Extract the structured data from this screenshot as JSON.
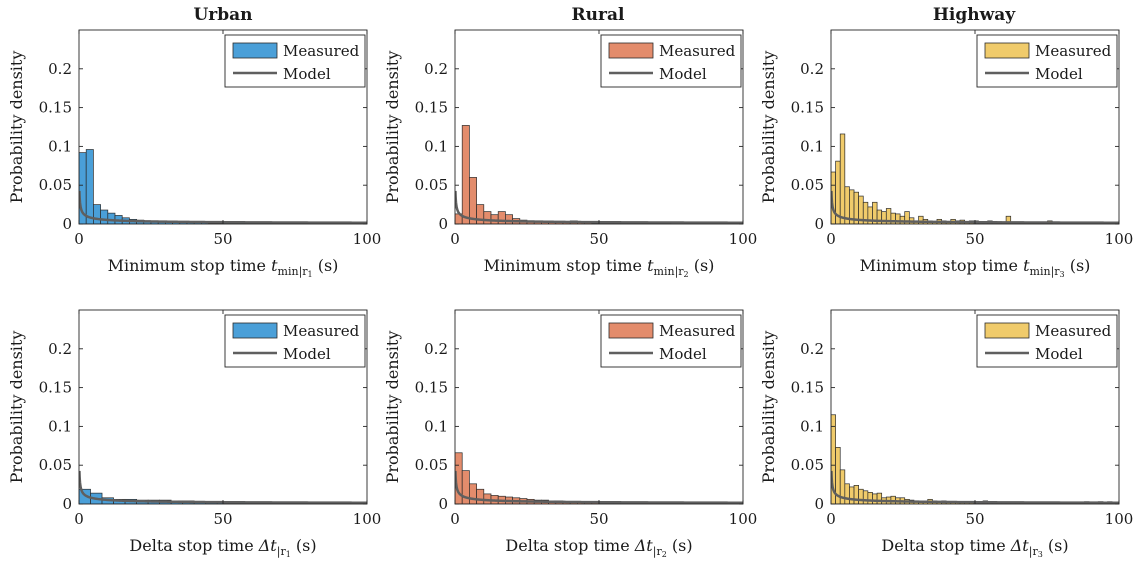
{
  "figure": {
    "columns": [
      "Urban",
      "Rural",
      "Highway"
    ],
    "colors": {
      "Urban": "#4a9fd8",
      "Rural": "#e38c6c",
      "Highway": "#f0cb6b",
      "model": "#5f5f5f",
      "edge": "#2b2b2b"
    }
  },
  "chart_data": [
    {
      "type": "bar",
      "column": "Urban",
      "row": "min",
      "xlabel_main": "Minimum stop time ",
      "xlabel_var": "t",
      "xlabel_sub": "min|r",
      "xlabel_subsub": "1",
      "xlabel_unit": " (s)",
      "ylabel": "Probability density",
      "xlim": [
        0,
        100
      ],
      "ylim": [
        0,
        0.25
      ],
      "xticks": [
        "0",
        "50",
        "100"
      ],
      "yticks": [
        "0",
        "0.05",
        "0.1",
        "0.15",
        "0.2"
      ],
      "bin_width": 2.5,
      "values": [
        0.092,
        0.096,
        0.025,
        0.018,
        0.014,
        0.011,
        0.008,
        0.006,
        0.005,
        0.004,
        0.004,
        0.003,
        0.003,
        0.002,
        0.002,
        0.002,
        0.002,
        0.002,
        0.001,
        0.001,
        0.001,
        0.001,
        0.001,
        0.001,
        0.001,
        0.001,
        0.001,
        0.001,
        0.001,
        0.001,
        0.001,
        0.001,
        0.0,
        0.0,
        0.0,
        0.0,
        0.0,
        0.0,
        0.0,
        0.0
      ],
      "model": {
        "a": 0.0165,
        "b": -0.5
      },
      "legend": {
        "measured": "Measured",
        "model": "Model"
      }
    },
    {
      "type": "bar",
      "column": "Rural",
      "row": "min",
      "xlabel_main": "Minimum stop time ",
      "xlabel_var": "t",
      "xlabel_sub": "min|r",
      "xlabel_subsub": "2",
      "xlabel_unit": " (s)",
      "ylabel": "Probability density",
      "xlim": [
        0,
        100
      ],
      "ylim": [
        0,
        0.25
      ],
      "xticks": [
        "0",
        "50",
        "100"
      ],
      "yticks": [
        "0",
        "0.05",
        "0.1",
        "0.15",
        "0.2"
      ],
      "bin_width": 2.5,
      "values": [
        0.013,
        0.127,
        0.06,
        0.025,
        0.016,
        0.012,
        0.016,
        0.012,
        0.007,
        0.005,
        0.004,
        0.003,
        0.003,
        0.003,
        0.002,
        0.002,
        0.004,
        0.003,
        0.002,
        0.001,
        0.001,
        0.001,
        0.001,
        0.001,
        0.001,
        0.001,
        0.001,
        0.001,
        0.001,
        0.001,
        0.0,
        0.0,
        0.0,
        0.0,
        0.0,
        0.0,
        0.0,
        0.0,
        0.0,
        0.0
      ],
      "model": {
        "a": 0.0165,
        "b": -0.5
      },
      "legend": {
        "measured": "Measured",
        "model": "Model"
      }
    },
    {
      "type": "bar",
      "column": "Highway",
      "row": "min",
      "xlabel_main": "Minimum stop time ",
      "xlabel_var": "t",
      "xlabel_sub": "min|r",
      "xlabel_subsub": "3",
      "xlabel_unit": " (s)",
      "ylabel": "Probability density",
      "xlim": [
        0,
        100
      ],
      "ylim": [
        0,
        0.25
      ],
      "xticks": [
        "0",
        "50",
        "100"
      ],
      "yticks": [
        "0",
        "0.05",
        "0.1",
        "0.15",
        "0.2"
      ],
      "bin_width": 1.6,
      "values": [
        0.067,
        0.081,
        0.116,
        0.048,
        0.044,
        0.041,
        0.036,
        0.028,
        0.022,
        0.028,
        0.018,
        0.016,
        0.02,
        0.014,
        0.013,
        0.01,
        0.016,
        0.008,
        0.004,
        0.01,
        0.006,
        0.004,
        0.003,
        0.006,
        0.004,
        0.002,
        0.006,
        0.004,
        0.005,
        0.003,
        0.004,
        0.004,
        0.003,
        0.002,
        0.004,
        0.002,
        0.003,
        0.002,
        0.01,
        0.002,
        0.002,
        0.002,
        0.002,
        0.002,
        0.002,
        0.002,
        0.002,
        0.004,
        0.0,
        0.0,
        0.0,
        0.0,
        0.0,
        0.0,
        0.0,
        0.0,
        0.0,
        0.0,
        0.0,
        0.0,
        0.0,
        0.0
      ],
      "model": {
        "a": 0.0165,
        "b": -0.5
      },
      "legend": {
        "measured": "Measured",
        "model": "Model"
      }
    },
    {
      "type": "bar",
      "column": "Urban",
      "row": "delta",
      "xlabel_main": "Delta stop time ",
      "xlabel_var": "Δt",
      "xlabel_sub": "|r",
      "xlabel_subsub": "1",
      "xlabel_unit": " (s)",
      "ylabel": "Probability density",
      "xlim": [
        0,
        100
      ],
      "ylim": [
        0,
        0.25
      ],
      "xticks": [
        "0",
        "50",
        "100"
      ],
      "yticks": [
        "0",
        "0.05",
        "0.1",
        "0.15",
        "0.2"
      ],
      "bin_width": 4,
      "values": [
        0.019,
        0.014,
        0.008,
        0.006,
        0.006,
        0.005,
        0.005,
        0.005,
        0.004,
        0.004,
        0.003,
        0.003,
        0.003,
        0.002,
        0.002,
        0.002,
        0.002,
        0.002,
        0.001,
        0.001,
        0.001,
        0.001,
        0.001,
        0.001,
        0.001
      ],
      "model": {
        "a": 0.0165,
        "b": -0.5
      },
      "legend": {
        "measured": "Measured",
        "model": "Model"
      }
    },
    {
      "type": "bar",
      "column": "Rural",
      "row": "delta",
      "xlabel_main": "Delta stop time ",
      "xlabel_var": "Δt",
      "xlabel_sub": "|r",
      "xlabel_subsub": "2",
      "xlabel_unit": " (s)",
      "ylabel": "Probability density",
      "xlim": [
        0,
        100
      ],
      "ylim": [
        0,
        0.25
      ],
      "xticks": [
        "0",
        "50",
        "100"
      ],
      "yticks": [
        "0",
        "0.05",
        "0.1",
        "0.15",
        "0.2"
      ],
      "bin_width": 2.5,
      "values": [
        0.066,
        0.043,
        0.026,
        0.019,
        0.013,
        0.011,
        0.01,
        0.009,
        0.008,
        0.007,
        0.006,
        0.005,
        0.005,
        0.004,
        0.004,
        0.003,
        0.003,
        0.003,
        0.003,
        0.003,
        0.002,
        0.002,
        0.002,
        0.002,
        0.002,
        0.002,
        0.002,
        0.002,
        0.001,
        0.001,
        0.001,
        0.001,
        0.001,
        0.001,
        0.001,
        0.001,
        0.001,
        0.001,
        0.001,
        0.001
      ],
      "model": {
        "a": 0.0165,
        "b": -0.5
      },
      "legend": {
        "measured": "Measured",
        "model": "Model"
      }
    },
    {
      "type": "bar",
      "column": "Highway",
      "row": "delta",
      "xlabel_main": "Delta stop time ",
      "xlabel_var": "Δt",
      "xlabel_sub": "|r",
      "xlabel_subsub": "3",
      "xlabel_unit": " (s)",
      "ylabel": "Probability density",
      "xlim": [
        0,
        100
      ],
      "ylim": [
        0,
        0.25
      ],
      "xticks": [
        "0",
        "50",
        "100"
      ],
      "yticks": [
        "0",
        "0.05",
        "0.1",
        "0.15",
        "0.2"
      ],
      "bin_width": 1.6,
      "values": [
        0.115,
        0.073,
        0.044,
        0.026,
        0.022,
        0.024,
        0.019,
        0.017,
        0.015,
        0.013,
        0.014,
        0.008,
        0.009,
        0.01,
        0.008,
        0.008,
        0.006,
        0.005,
        0.004,
        0.004,
        0.004,
        0.006,
        0.004,
        0.003,
        0.004,
        0.003,
        0.003,
        0.002,
        0.003,
        0.002,
        0.002,
        0.003,
        0.002,
        0.004,
        0.002,
        0.002,
        0.002,
        0.002,
        0.002,
        0.002,
        0.002,
        0.002,
        0.001,
        0.001,
        0.001,
        0.001,
        0.001,
        0.001,
        0.001,
        0.001,
        0.001,
        0.001,
        0.001,
        0.001,
        0.001,
        0.003,
        0.0,
        0.0,
        0.003,
        0.0,
        0.003,
        0.0
      ],
      "model": {
        "a": 0.0165,
        "b": -0.5
      },
      "legend": {
        "measured": "Measured",
        "model": "Model"
      }
    }
  ]
}
